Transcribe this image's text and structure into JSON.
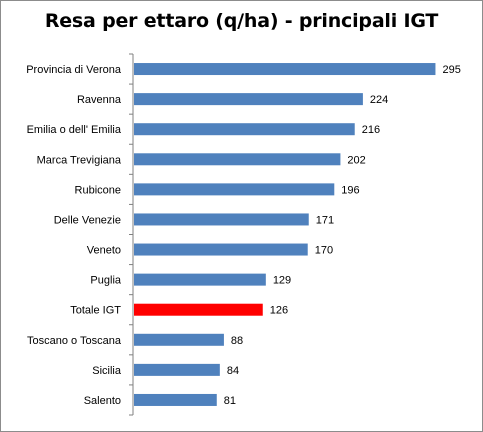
{
  "chart_data": {
    "type": "bar",
    "orientation": "horizontal",
    "title": "Resa per ettaro (q/ha) - principali  IGT",
    "xlabel": "",
    "ylabel": "",
    "xlim": [
      0,
      320
    ],
    "grid": false,
    "legend": "none",
    "categories": [
      "Provincia di Verona",
      "Ravenna",
      "Emilia o dell' Emilia",
      "Marca Trevigiana",
      "Rubicone",
      "Delle Venezie",
      "Veneto",
      "Puglia",
      "Totale IGT",
      "Toscano o Toscana",
      "Sicilia",
      "Salento"
    ],
    "values": [
      295,
      224,
      216,
      202,
      196,
      171,
      170,
      129,
      126,
      88,
      84,
      81
    ],
    "highlight_category": "Totale IGT",
    "colors": {
      "bar": "#4f81bd",
      "highlight": "#ff0000",
      "axis": "#808080",
      "text": "#000000"
    }
  }
}
